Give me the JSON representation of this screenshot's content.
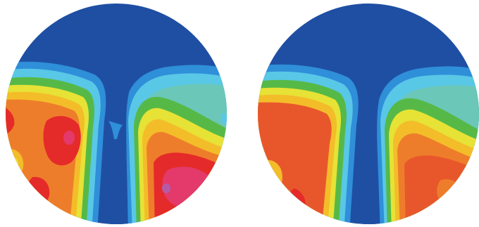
{
  "figure": {
    "panels": [
      {
        "id": "left",
        "description_free": true
      },
      {
        "id": "right",
        "description_free": true
      }
    ],
    "colors": {
      "deep_blue": "#1f4fa3",
      "light_blue": "#2f8fd9",
      "cyan": "#59c7e6",
      "teal": "#6bc7b8",
      "green": "#56b947",
      "yellow": "#e7e236",
      "yellow_orange": "#f3bd2a",
      "orange": "#ee7d2b",
      "dark_orange": "#e8572b",
      "red": "#e52a2a",
      "magenta": "#e33a6b"
    }
  }
}
